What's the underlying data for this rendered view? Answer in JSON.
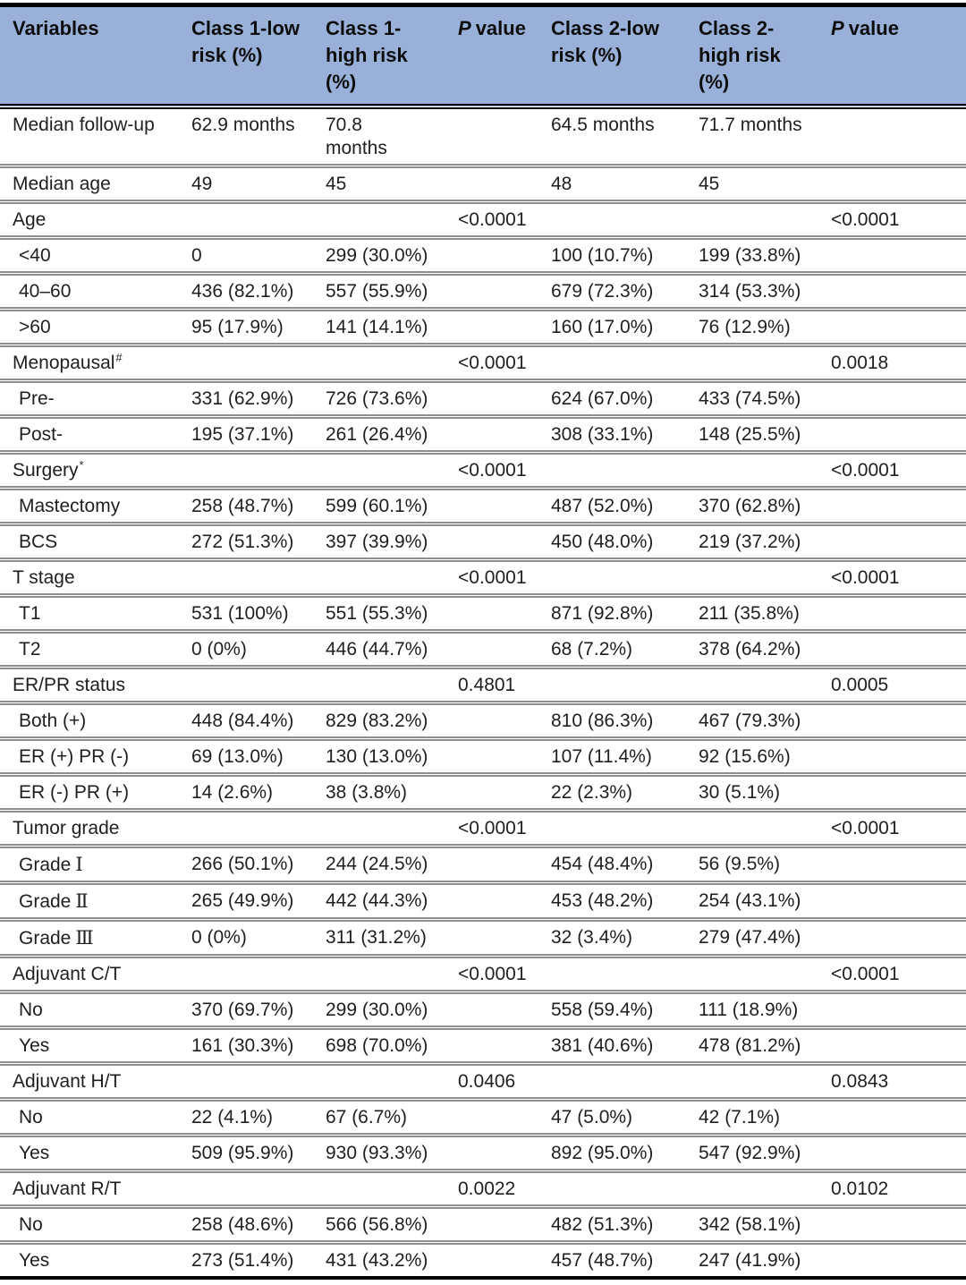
{
  "colors": {
    "header_bg": "#99b1d9",
    "thick_rule": "#000000",
    "row_rule": "#8f8f8f",
    "text": "#1f1f1f"
  },
  "table": {
    "header": {
      "columns": [
        {
          "id": "variables",
          "label": "Variables"
        },
        {
          "id": "class1-low",
          "label": "Class 1-low risk (%)"
        },
        {
          "id": "class1-high",
          "label": "Class 1-high risk (%)"
        },
        {
          "id": "p-value-1",
          "italic_p": true,
          "p_symbol": "P",
          "p_word": "value"
        },
        {
          "id": "class2-low",
          "label": "Class 2-low risk (%)"
        },
        {
          "id": "class2-high",
          "label": "Class 2-high risk (%)"
        },
        {
          "id": "p-value-2",
          "italic_p": true,
          "p_symbol": "P",
          "p_word": "value"
        }
      ]
    },
    "rows": [
      {
        "label": "Median follow-up",
        "cells": [
          "62.9 months",
          "70.8 months",
          "",
          "64.5 months",
          "71.7 months",
          ""
        ]
      },
      {
        "label": "Median age",
        "cells": [
          "49",
          "45",
          "",
          "48",
          "45",
          ""
        ]
      },
      {
        "label": "Age",
        "cells": [
          "",
          "",
          "<0.0001",
          "",
          "",
          "<0.0001"
        ]
      },
      {
        "label": "<40",
        "indent": true,
        "cells": [
          "0",
          "299 (30.0%)",
          "",
          "100 (10.7%)",
          "199 (33.8%)",
          ""
        ]
      },
      {
        "label": "40–60",
        "indent": true,
        "cells": [
          "436 (82.1%)",
          "557 (55.9%)",
          "",
          "679 (72.3%)",
          "314 (53.3%)",
          ""
        ]
      },
      {
        "label": ">60",
        "indent": true,
        "cells": [
          "95 (17.9%)",
          "141 (14.1%)",
          "",
          "160 (17.0%)",
          "76 (12.9%)",
          ""
        ]
      },
      {
        "label": "Menopausal",
        "sup": "#",
        "cells": [
          "",
          "",
          "<0.0001",
          "",
          "",
          "0.0018"
        ]
      },
      {
        "label": "Pre-",
        "indent": true,
        "cells": [
          "331 (62.9%)",
          "726 (73.6%)",
          "",
          "624 (67.0%)",
          "433 (74.5%)",
          ""
        ]
      },
      {
        "label": "Post-",
        "indent": true,
        "cells": [
          "195 (37.1%)",
          "261 (26.4%)",
          "",
          "308 (33.1%)",
          "148 (25.5%)",
          ""
        ]
      },
      {
        "label": "Surgery",
        "sup": "*",
        "cells": [
          "",
          "",
          "<0.0001",
          "",
          "",
          "<0.0001"
        ]
      },
      {
        "label": "Mastectomy",
        "indent": true,
        "cells": [
          "258 (48.7%)",
          "599 (60.1%)",
          "",
          "487 (52.0%)",
          "370 (62.8%)",
          ""
        ]
      },
      {
        "label": "BCS",
        "indent": true,
        "cells": [
          "272 (51.3%)",
          "397 (39.9%)",
          "",
          "450 (48.0%)",
          "219 (37.2%)",
          ""
        ]
      },
      {
        "label": "T stage",
        "cells": [
          "",
          "",
          "<0.0001",
          "",
          "",
          "<0.0001"
        ]
      },
      {
        "label": "T1",
        "indent": true,
        "cells": [
          "531 (100%)",
          "551 (55.3%)",
          "",
          "871 (92.8%)",
          "211 (35.8%)",
          ""
        ]
      },
      {
        "label": "T2",
        "indent": true,
        "cells": [
          "0 (0%)",
          "446 (44.7%)",
          "",
          "68 (7.2%)",
          "378 (64.2%)",
          ""
        ]
      },
      {
        "label": "ER/PR status",
        "cells": [
          "",
          "",
          "0.4801",
          "",
          "",
          "0.0005"
        ]
      },
      {
        "label": "Both (+)",
        "indent": true,
        "cells": [
          "448 (84.4%)",
          "829 (83.2%)",
          "",
          "810 (86.3%)",
          "467 (79.3%)",
          ""
        ]
      },
      {
        "label": "ER (+) PR (-)",
        "indent": true,
        "cells": [
          "69 (13.0%)",
          "130 (13.0%)",
          "",
          "107 (11.4%)",
          "92 (15.6%)",
          ""
        ]
      },
      {
        "label": "ER (-) PR (+)",
        "indent": true,
        "cells": [
          "14 (2.6%)",
          "38 (3.8%)",
          "",
          "22 (2.3%)",
          "30 (5.1%)",
          ""
        ]
      },
      {
        "label": "Tumor grade",
        "cells": [
          "",
          "",
          "<0.0001",
          "",
          "",
          "<0.0001"
        ]
      },
      {
        "label": "Grade",
        "roman": "Ⅰ",
        "indent": true,
        "cells": [
          "266 (50.1%)",
          "244 (24.5%)",
          "",
          "454 (48.4%)",
          "56 (9.5%)",
          ""
        ]
      },
      {
        "label": "Grade",
        "roman": "Ⅱ",
        "indent": true,
        "cells": [
          "265 (49.9%)",
          "442 (44.3%)",
          "",
          "453 (48.2%)",
          "254 (43.1%)",
          ""
        ]
      },
      {
        "label": "Grade",
        "roman": "Ⅲ",
        "indent": true,
        "cells": [
          "0 (0%)",
          "311 (31.2%)",
          "",
          "32 (3.4%)",
          "279 (47.4%)",
          ""
        ]
      },
      {
        "label": "Adjuvant C/T",
        "cells": [
          "",
          "",
          "<0.0001",
          "",
          "",
          "<0.0001"
        ]
      },
      {
        "label": "No",
        "indent": true,
        "cells": [
          "370 (69.7%)",
          "299 (30.0%)",
          "",
          "558 (59.4%)",
          "111 (18.9%)",
          ""
        ]
      },
      {
        "label": "Yes",
        "indent": true,
        "cells": [
          "161 (30.3%)",
          "698 (70.0%)",
          "",
          "381 (40.6%)",
          "478 (81.2%)",
          ""
        ]
      },
      {
        "label": "Adjuvant H/T",
        "cells": [
          "",
          "",
          "0.0406",
          "",
          "",
          "0.0843"
        ]
      },
      {
        "label": "No",
        "indent": true,
        "cells": [
          "22 (4.1%)",
          "67 (6.7%)",
          "",
          "47 (5.0%)",
          "42 (7.1%)",
          ""
        ]
      },
      {
        "label": "Yes",
        "indent": true,
        "cells": [
          "509 (95.9%)",
          "930 (93.3%)",
          "",
          "892 (95.0%)",
          "547 (92.9%)",
          ""
        ]
      },
      {
        "label": "Adjuvant R/T",
        "cells": [
          "",
          "",
          "0.0022",
          "",
          "",
          "0.0102"
        ]
      },
      {
        "label": "No",
        "indent": true,
        "cells": [
          "258 (48.6%)",
          "566 (56.8%)",
          "",
          "482 (51.3%)",
          "342 (58.1%)",
          ""
        ]
      },
      {
        "label": "Yes",
        "indent": true,
        "cells": [
          "273 (51.4%)",
          "431 (43.2%)",
          "",
          "457 (48.7%)",
          "247 (41.9%)",
          ""
        ]
      }
    ]
  }
}
